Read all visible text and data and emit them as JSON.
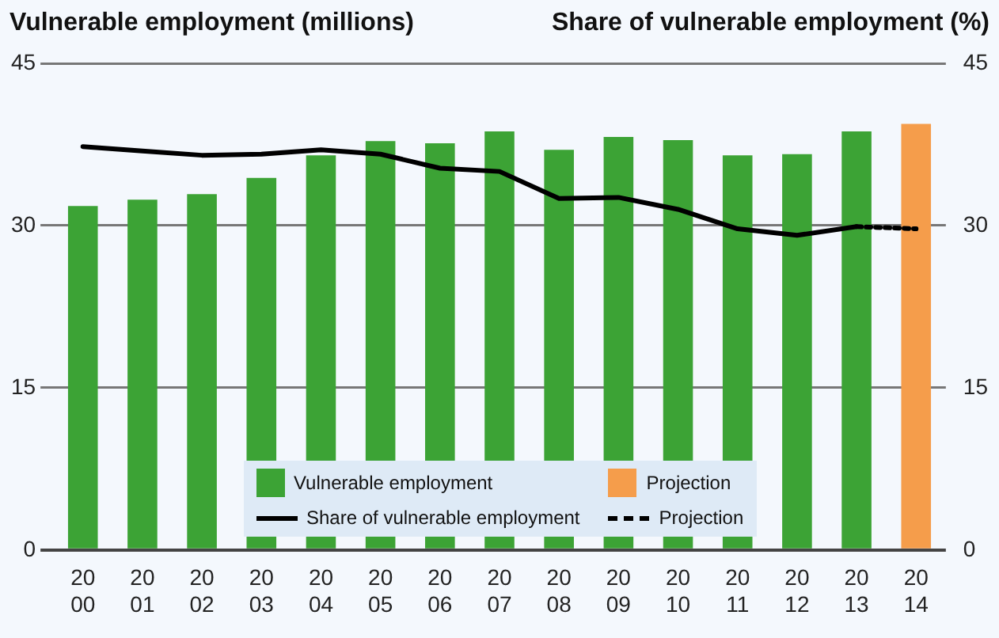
{
  "chart_data": {
    "type": "bar",
    "ylabel": "Vulnerable employment (millions)",
    "y2label": "Share of vulnerable employment (%)",
    "categories": [
      "2000",
      "2001",
      "2002",
      "2003",
      "2004",
      "2005",
      "2006",
      "2007",
      "2008",
      "2009",
      "2010",
      "2011",
      "2012",
      "2013",
      "2014"
    ],
    "series": [
      {
        "name": "Vulnerable employment",
        "color": "#3ca335",
        "values": [
          31.8,
          32.4,
          32.9,
          34.4,
          36.5,
          37.8,
          37.6,
          38.7,
          37.0,
          38.2,
          37.9,
          36.5,
          36.6,
          38.7,
          null
        ]
      },
      {
        "name": "Projection",
        "color": "#f59d4b",
        "values": [
          null,
          null,
          null,
          null,
          null,
          null,
          null,
          null,
          null,
          null,
          null,
          null,
          null,
          null,
          39.4
        ]
      },
      {
        "name": "Share of vulnerable employment",
        "type": "line",
        "axis": "y2",
        "color": "#000000",
        "line_style": "solid",
        "values": [
          37.3,
          36.9,
          36.5,
          36.6,
          37.0,
          36.6,
          35.3,
          35.0,
          32.5,
          32.6,
          31.5,
          29.7,
          29.1,
          29.9,
          null
        ]
      },
      {
        "name": "Projection",
        "type": "line",
        "axis": "y2",
        "color": "#000000",
        "line_style": "dotted",
        "values": [
          null,
          null,
          null,
          null,
          null,
          null,
          null,
          null,
          null,
          null,
          null,
          null,
          null,
          29.9,
          29.7
        ]
      }
    ],
    "ylim": [
      0,
      45
    ],
    "yticks": [
      0,
      15,
      30,
      45
    ],
    "y2lim": [
      0,
      45
    ],
    "y2ticks": [
      0,
      15,
      30,
      45
    ],
    "grid": "y",
    "legend": "bottom",
    "marker": "none"
  }
}
